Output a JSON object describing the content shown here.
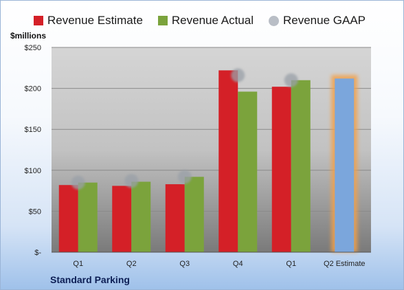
{
  "chart_data": {
    "type": "bar",
    "ylabel": "$millions",
    "company": "Standard Parking",
    "categories": [
      "Q1",
      "Q2",
      "Q3",
      "Q4",
      "Q1",
      "Q2 Estimate"
    ],
    "series": [
      {
        "name": "Revenue Estimate",
        "color": "#d42027",
        "values": [
          82,
          81,
          83,
          222,
          202,
          null
        ]
      },
      {
        "name": "Revenue Actual",
        "color": "#7ba33c",
        "values": [
          85,
          86,
          92,
          196,
          210,
          null
        ]
      },
      {
        "name": "Revenue GAAP",
        "color": "#b9bec6",
        "values": [
          85,
          87,
          92,
          216,
          210,
          null
        ]
      }
    ],
    "estimate": {
      "category_index": 5,
      "value": 212,
      "color": "#7ba6dc",
      "glow": "#f2a04a"
    },
    "ylim": [
      0,
      250
    ],
    "yticks": [
      0,
      50,
      100,
      150,
      200,
      250
    ],
    "ytick_labels": [
      "$-",
      "$50",
      "$100",
      "$150",
      "$200",
      "$250"
    ],
    "grid": true,
    "legend_position": "top"
  }
}
